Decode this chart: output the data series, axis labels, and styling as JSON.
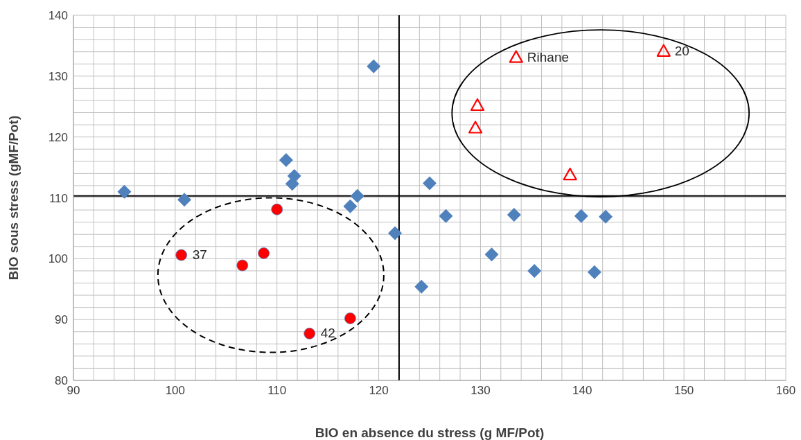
{
  "chart_data": {
    "type": "scatter",
    "xlabel": "BIO en absence du stress (g MF/Pot)",
    "ylabel": "BIO sous stress (gMF/Pot)",
    "xlim": [
      90,
      160
    ],
    "ylim": [
      80,
      140
    ],
    "xticks": [
      90,
      {
        "value": 92,
        "label": null
      },
      {
        "value": 94,
        "label": null
      },
      {
        "value": 96,
        "label": null
      },
      {
        "value": 98,
        "label": null
      },
      100,
      {
        "value": 102,
        "label": null
      },
      {
        "value": 104,
        "label": null
      },
      {
        "value": 106,
        "label": null
      },
      {
        "value": 108,
        "label": null
      },
      110,
      {
        "value": 112,
        "label": null
      },
      {
        "value": 114,
        "label": null
      },
      {
        "value": 116,
        "label": null
      },
      {
        "value": 118,
        "label": null
      },
      120,
      {
        "value": 122,
        "label": null
      },
      {
        "value": 124,
        "label": null
      },
      {
        "value": 126,
        "label": null
      },
      {
        "value": 128,
        "label": null
      },
      130,
      {
        "value": 132,
        "label": null
      },
      {
        "value": 134,
        "label": null
      },
      {
        "value": 136,
        "label": null
      },
      {
        "value": 138,
        "label": null
      },
      140,
      {
        "value": 142,
        "label": null
      },
      {
        "value": 144,
        "label": null
      },
      {
        "value": 146,
        "label": null
      },
      {
        "value": 148,
        "label": null
      },
      150,
      {
        "value": 152,
        "label": null
      },
      {
        "value": 154,
        "label": null
      },
      {
        "value": 156,
        "label": null
      },
      {
        "value": 158,
        "label": null
      },
      160
    ],
    "yticks": [
      80,
      {
        "value": 82,
        "label": null
      },
      {
        "value": 84,
        "label": null
      },
      {
        "value": 86,
        "label": null
      },
      {
        "value": 88,
        "label": null
      },
      90,
      {
        "value": 92,
        "label": null
      },
      {
        "value": 94,
        "label": null
      },
      {
        "value": 96,
        "label": null
      },
      {
        "value": 98,
        "label": null
      },
      100,
      {
        "value": 102,
        "label": null
      },
      {
        "value": 104,
        "label": null
      },
      {
        "value": 106,
        "label": null
      },
      {
        "value": 108,
        "label": null
      },
      110,
      {
        "value": 112,
        "label": null
      },
      {
        "value": 114,
        "label": null
      },
      {
        "value": 116,
        "label": null
      },
      {
        "value": 118,
        "label": null
      },
      120,
      {
        "value": 122,
        "label": null
      },
      {
        "value": 124,
        "label": null
      },
      {
        "value": 126,
        "label": null
      },
      {
        "value": 128,
        "label": null
      },
      130,
      {
        "value": 132,
        "label": null
      },
      {
        "value": 134,
        "label": null
      },
      {
        "value": 136,
        "label": null
      },
      {
        "value": 138,
        "label": null
      },
      140
    ],
    "grid": true,
    "series": [
      {
        "color": "#4f81bd",
        "marker": "diamond",
        "x": [
          95.0,
          100.9,
          110.9,
          111.7,
          111.5,
          117.9,
          117.2,
          119.5,
          121.6,
          124.2,
          125.0,
          126.6,
          133.3,
          139.9,
          142.3,
          131.1,
          135.3,
          141.2
        ],
        "values": [
          111.0,
          109.7,
          116.2,
          113.6,
          112.3,
          110.3,
          108.6,
          131.6,
          104.2,
          95.4,
          112.4,
          107.0,
          107.2,
          107.0,
          106.9,
          100.7,
          98.0,
          97.8
        ]
      },
      {
        "color": "#ff0000",
        "marker": "circle",
        "x": [
          110.0,
          100.6,
          106.6,
          108.7,
          113.2,
          117.2
        ],
        "values": [
          108.1,
          100.6,
          98.9,
          100.9,
          87.7,
          90.2
        ]
      },
      {
        "color": "#ff0000",
        "marker": "triangle",
        "x": [
          133.5,
          148.0,
          129.7,
          129.5,
          138.8
        ],
        "values": [
          133.1,
          134.1,
          125.2,
          121.5,
          113.8
        ]
      }
    ],
    "ref_lines": [
      {
        "axis": "y",
        "value": 110.3,
        "color": "#000000"
      },
      {
        "axis": "x",
        "value": 122,
        "color": "#000000"
      }
    ],
    "annotations": [
      {
        "text": "Rihane",
        "x": 133.5,
        "y": 133.1
      },
      {
        "text": "20",
        "x": 148.0,
        "y": 134.1
      },
      {
        "text": "37",
        "x": 100.6,
        "y": 100.6
      },
      {
        "text": "42",
        "x": 113.2,
        "y": 87.7
      }
    ]
  }
}
